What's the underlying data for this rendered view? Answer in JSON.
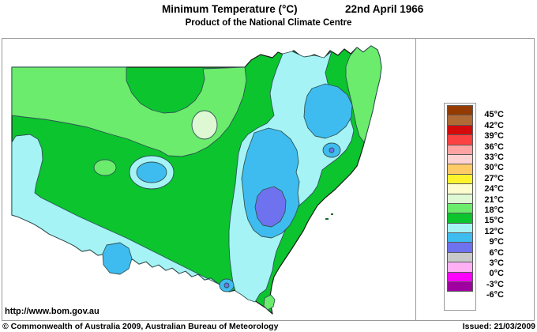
{
  "header": {
    "title": "Minimum Temperature (°C)",
    "date": "22nd April 1966",
    "subtitle": "Product of the National Climate Centre"
  },
  "legend": {
    "swatches": [
      "#963B00",
      "#B06A36",
      "#D50A0A",
      "#FB4141",
      "#FFA3A3",
      "#FFD2D2",
      "#FFCB67",
      "#FCF32D",
      "#FCFCCF",
      "#DDF8D2",
      "#6CEC6C",
      "#0BC42E",
      "#A5F3F5",
      "#3FBCEF",
      "#6E72EE",
      "#C9C9C9",
      "#FFB0F5",
      "#FF00FF",
      "#A100A1"
    ],
    "labels": [
      "45°C",
      "42°C",
      "39°C",
      "36°C",
      "33°C",
      "30°C",
      "27°C",
      "24°C",
      "21°C",
      "18°C",
      "15°C",
      "12°C",
      "9°C",
      "6°C",
      "3°C",
      "0°C",
      "-3°C",
      "-6°C"
    ]
  },
  "map": {
    "palette": {
      "band18_21": "#DDF8D2",
      "band15_18": "#6CEC6C",
      "band12_15": "#0BC42E",
      "band9_12": "#A5F3F5",
      "band6_9": "#3FBCEF",
      "band3_6": "#6E72EE"
    },
    "outline_color": "#1a1a1a",
    "contour_color": "#2e5454"
  },
  "footer": {
    "url": "http://www.bom.gov.au",
    "copyright": "© Commonwealth of Australia 2009, Australian Bureau of Meteorology",
    "issued": "Issued: 21/03/2009"
  }
}
